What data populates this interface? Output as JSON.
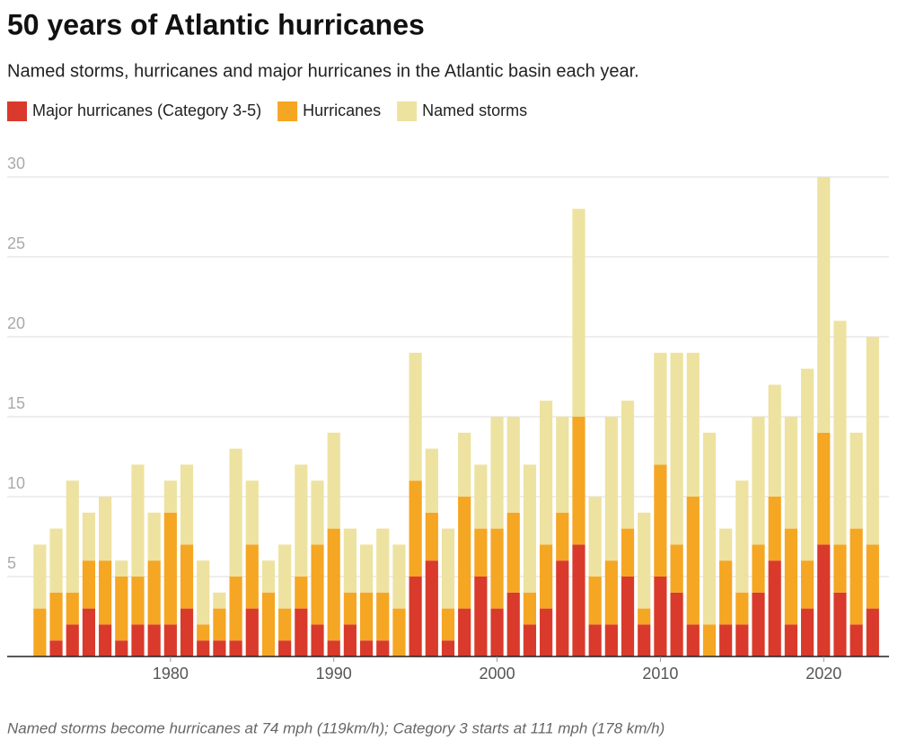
{
  "chart_data": {
    "type": "stacked-bar",
    "title": "50 years of Atlantic hurricanes",
    "subtitle": "Named storms, hurricanes and major hurricanes in the Atlantic basin each year.",
    "footnote": "Named storms become hurricanes at 74 mph (119km/h); Category 3 starts at 111 mph (178 km/h)",
    "x": [
      1972,
      1973,
      1974,
      1975,
      1976,
      1977,
      1978,
      1979,
      1980,
      1981,
      1982,
      1983,
      1984,
      1985,
      1986,
      1987,
      1988,
      1989,
      1990,
      1991,
      1992,
      1993,
      1994,
      1995,
      1996,
      1997,
      1998,
      1999,
      2000,
      2001,
      2002,
      2003,
      2004,
      2005,
      2006,
      2007,
      2008,
      2009,
      2010,
      2011,
      2012,
      2013,
      2014,
      2015,
      2016,
      2017,
      2018,
      2019,
      2020,
      2021,
      2022,
      2023
    ],
    "series": [
      {
        "name": "Major hurricanes (Category 3-5)",
        "color": "#d93a2b",
        "values": [
          0,
          1,
          2,
          3,
          2,
          1,
          2,
          2,
          2,
          3,
          1,
          1,
          1,
          3,
          0,
          1,
          3,
          2,
          1,
          2,
          1,
          1,
          0,
          5,
          6,
          1,
          3,
          5,
          3,
          4,
          2,
          3,
          6,
          7,
          2,
          2,
          5,
          2,
          5,
          4,
          2,
          0,
          2,
          2,
          4,
          6,
          2,
          3,
          7,
          4,
          2,
          3
        ]
      },
      {
        "name": "Hurricanes",
        "color": "#f5a623",
        "values": [
          3,
          3,
          2,
          3,
          4,
          4,
          3,
          4,
          7,
          4,
          1,
          2,
          4,
          4,
          4,
          2,
          2,
          5,
          7,
          2,
          3,
          3,
          3,
          6,
          3,
          2,
          7,
          3,
          5,
          5,
          2,
          4,
          3,
          8,
          3,
          4,
          3,
          1,
          7,
          3,
          8,
          2,
          4,
          2,
          3,
          4,
          6,
          3,
          7,
          3,
          6,
          4
        ]
      },
      {
        "name": "Named storms",
        "color": "#ede2a0",
        "values": [
          4,
          4,
          7,
          3,
          4,
          1,
          7,
          3,
          2,
          5,
          4,
          1,
          8,
          4,
          2,
          4,
          7,
          4,
          6,
          4,
          3,
          4,
          4,
          8,
          4,
          5,
          4,
          4,
          7,
          6,
          8,
          9,
          6,
          13,
          5,
          9,
          8,
          6,
          7,
          12,
          9,
          12,
          2,
          7,
          8,
          7,
          7,
          12,
          16,
          14,
          6,
          13
        ]
      }
    ],
    "xlim": [
      1970,
      2024
    ],
    "xticks": [
      1980,
      1990,
      2000,
      2010,
      2020
    ],
    "ylim": [
      0,
      30
    ],
    "yticks": [
      5,
      10,
      15,
      20,
      25,
      30
    ],
    "grid": true
  }
}
